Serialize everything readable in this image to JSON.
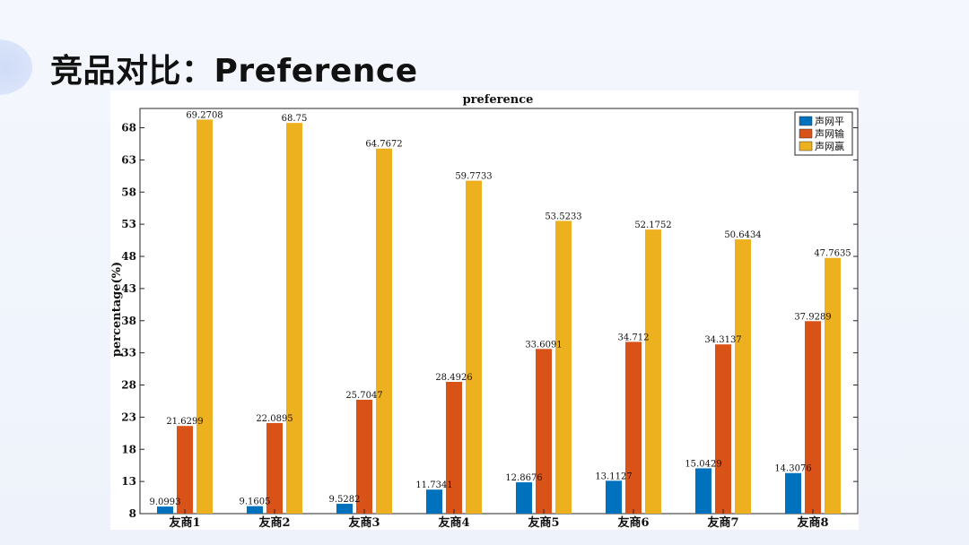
{
  "slide": {
    "title": "竞品对比：Preference"
  },
  "colors": {
    "series": [
      "#0072BD",
      "#D95319",
      "#EDB120"
    ]
  },
  "chart_data": {
    "type": "bar",
    "title": "preference",
    "xlabel": "",
    "ylabel": "percentage(%)",
    "ylim": [
      8,
      71
    ],
    "yticks": [
      8,
      13,
      18,
      23,
      28,
      33,
      38,
      43,
      48,
      53,
      58,
      63,
      68
    ],
    "grid": false,
    "legend_position": "top-right",
    "categories": [
      "友商1",
      "友商2",
      "友商3",
      "友商4",
      "友商5",
      "友商6",
      "友商7",
      "友商8"
    ],
    "series": [
      {
        "name": "声网平",
        "values": [
          9.0993,
          9.1605,
          9.5282,
          11.7341,
          12.8676,
          13.1127,
          15.0429,
          14.3076
        ]
      },
      {
        "name": "声网输",
        "values": [
          21.6299,
          22.0895,
          25.7047,
          28.4926,
          33.6091,
          34.712,
          34.3137,
          37.9289
        ]
      },
      {
        "name": "声网赢",
        "values": [
          69.2708,
          68.75,
          64.7672,
          59.7733,
          53.5233,
          52.1752,
          50.6434,
          47.7635
        ]
      }
    ],
    "data_labels": [
      [
        "9.0993",
        "9.1605",
        "9.5282",
        "11.7341",
        "12.8676",
        "13.1127",
        "15.0429",
        "14.3076"
      ],
      [
        "21.6299",
        "22.0895",
        "25.7047",
        "28.4926",
        "33.6091",
        "34.712",
        "34.3137",
        "37.9289"
      ],
      [
        "69.2708",
        "68.75",
        "64.7672",
        "59.7733",
        "53.5233",
        "52.1752",
        "50.6434",
        "47.7635"
      ]
    ]
  }
}
